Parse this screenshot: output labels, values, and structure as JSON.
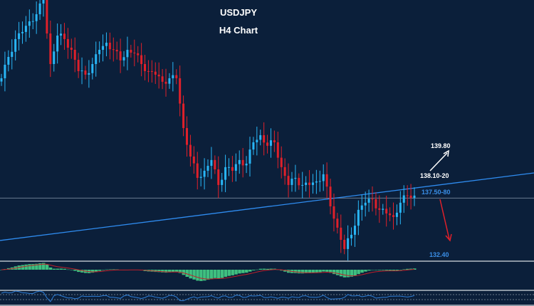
{
  "chart_data": {
    "type": "candlestick",
    "title": "USDJPY",
    "subtitle": "H4 Chart",
    "ylim": [
      131.97,
      155.7
    ],
    "closes": [
      148.55,
      150.5,
      152.13,
      152.78,
      153.75,
      154.4,
      155.7,
      149.85,
      152.45,
      152.13,
      151.15,
      149.2,
      148.88,
      149.85,
      151.15,
      151.8,
      151.15,
      150.18,
      151.15,
      150.83,
      149.85,
      149.2,
      148.88,
      148.23,
      148.55,
      148.55,
      144.0,
      141.4,
      139.45,
      140.1,
      141.08,
      138.8,
      140.43,
      140.1,
      141.08,
      140.75,
      142.7,
      143.35,
      142.38,
      142.7,
      140.43,
      138.8,
      139.45,
      138.8,
      138.8,
      139.13,
      139.78,
      136.85,
      134.9,
      132.95,
      134.25,
      136.53,
      137.18,
      137.5,
      136.53,
      136.2,
      135.88,
      137.18,
      137.83,
      137.83
    ],
    "horizontal_level": 137.6,
    "trendline": {
      "start": 133.73,
      "end": 139.9
    },
    "annotations": [
      {
        "text": "139.80",
        "price": 139.8,
        "color": "#ffffff"
      },
      {
        "text": "138.10-20",
        "price": 138.15,
        "color": "#ffffff"
      },
      {
        "text": "137.50-80",
        "price": 137.65,
        "color": "#3a8ee6"
      },
      {
        "text": "132.40",
        "price": 132.4,
        "color": "#3a8ee6"
      }
    ],
    "colors": {
      "bull": "#29b6f6",
      "bear": "#e0202a",
      "trend": "#2f8cf0",
      "hist": "#3fbf7f",
      "signal": "#c0202a",
      "osc": "#2f7fd8"
    }
  }
}
